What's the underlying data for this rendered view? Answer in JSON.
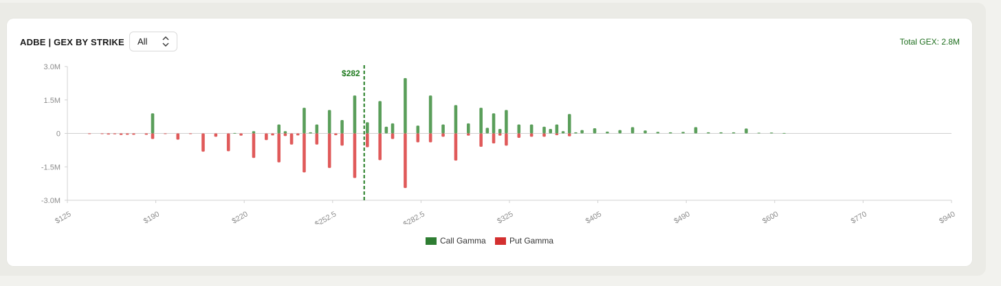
{
  "header": {
    "title": "ADBE | GEX BY STRIKE",
    "select_value": "All",
    "total_gex": "Total GEX: 2.8M"
  },
  "legend": {
    "call_label": "Call Gamma",
    "put_label": "Put Gamma"
  },
  "colors": {
    "call": "#5a9e5a",
    "put": "#e05a5a",
    "spot_line": "#1e7a1e",
    "legend_call": "#2e7d32",
    "legend_put": "#d32f2f"
  },
  "chart_data": {
    "type": "bar",
    "title": "ADBE | GEX BY STRIKE",
    "ylim": [
      -3000000,
      3000000
    ],
    "y_ticks": [
      {
        "value": 3000000,
        "label": "3.0M"
      },
      {
        "value": 1500000,
        "label": "1.5M"
      },
      {
        "value": 0,
        "label": "0"
      },
      {
        "value": -1500000,
        "label": "-1.5M"
      },
      {
        "value": -3000000,
        "label": "-3.0M"
      }
    ],
    "x_tick_labels": [
      "$125",
      "$190",
      "$220",
      "$252.5",
      "$282.5",
      "$325",
      "$405",
      "$490",
      "$600",
      "$770",
      "$940"
    ],
    "spot": {
      "label": "$282",
      "index": 46.5
    },
    "series": [
      {
        "name": "Call Gamma",
        "values": [
          0,
          0,
          0,
          0,
          0,
          0,
          0,
          0,
          0,
          0,
          0,
          0,
          0,
          900000,
          0,
          0,
          0,
          0,
          0,
          0,
          0,
          0,
          0,
          0,
          0,
          0,
          20000,
          0,
          0,
          100000,
          0,
          0,
          0,
          400000,
          100000,
          0,
          0,
          1150000,
          50000,
          400000,
          0,
          1050000,
          0,
          600000,
          0,
          1700000,
          0,
          500000,
          0,
          1450000,
          300000,
          450000,
          0,
          2480000,
          0,
          350000,
          0,
          1700000,
          0,
          400000,
          0,
          1270000,
          0,
          450000,
          0,
          1150000,
          250000,
          900000,
          200000,
          1050000,
          0,
          400000,
          0,
          400000,
          0,
          300000,
          200000,
          400000,
          100000,
          870000,
          50000,
          150000,
          0,
          230000,
          0,
          80000,
          0,
          150000,
          0,
          280000,
          0,
          130000,
          0,
          70000,
          0,
          50000,
          0,
          70000,
          0,
          280000,
          0,
          50000,
          0,
          50000,
          0,
          50000,
          0,
          220000,
          0,
          30000,
          0,
          40000,
          0,
          20000,
          0,
          0,
          0,
          0,
          0,
          0,
          0,
          0,
          0,
          0,
          0,
          0,
          0,
          0,
          0,
          0,
          0,
          0,
          0,
          0,
          0,
          0,
          0,
          0,
          0,
          0
        ],
        "note_count": 140
      },
      {
        "name": "Put Gamma",
        "values": [
          0,
          0,
          0,
          -20000,
          0,
          -20000,
          -50000,
          -40000,
          -70000,
          -60000,
          -60000,
          0,
          -60000,
          -250000,
          0,
          -30000,
          0,
          -280000,
          0,
          -20000,
          0,
          -820000,
          0,
          -150000,
          0,
          -800000,
          0,
          -100000,
          0,
          -1100000,
          0,
          -300000,
          -90000,
          -1300000,
          -120000,
          -500000,
          -90000,
          -1750000,
          0,
          -500000,
          0,
          -1550000,
          -80000,
          -550000,
          0,
          -2000000,
          0,
          -620000,
          0,
          -1200000,
          0,
          -250000,
          0,
          -2450000,
          0,
          -400000,
          0,
          -400000,
          0,
          -150000,
          0,
          -1220000,
          0,
          -100000,
          0,
          -600000,
          0,
          -450000,
          -100000,
          -550000,
          0,
          -200000,
          0,
          -150000,
          0,
          -150000,
          0,
          -80000,
          0,
          -130000,
          0,
          0,
          0,
          0,
          0,
          0,
          0,
          0,
          0,
          0,
          0,
          0,
          0,
          0,
          0,
          0,
          0,
          0,
          0,
          0,
          0,
          0,
          0,
          0,
          0,
          0,
          0,
          0,
          0,
          0,
          0,
          0,
          0,
          0,
          0,
          0,
          0,
          0,
          0,
          0,
          0,
          0,
          0,
          0,
          0,
          0,
          0,
          0,
          0,
          0,
          0,
          0,
          0,
          0,
          0,
          0,
          0,
          0,
          0,
          0
        ]
      }
    ]
  }
}
